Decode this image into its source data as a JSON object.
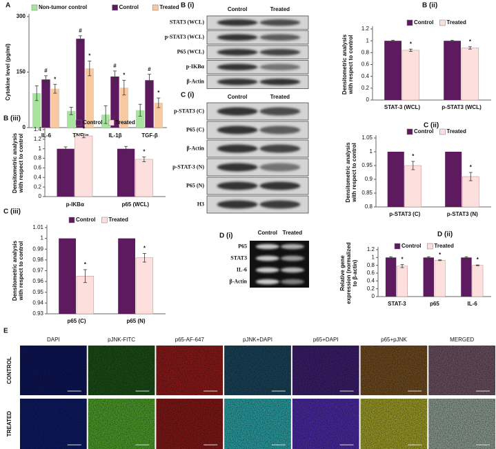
{
  "chart_data": [
    {
      "type": "bar",
      "panel": "A",
      "ylabel": [
        "Cytokine level (pg/ml)"
      ],
      "categories": [
        "IL-6",
        "TNF-α",
        "IL-1β",
        "TGF-β"
      ],
      "series": [
        {
          "name": "Non-tumor control",
          "color": "#a8e3a0",
          "values": [
            93,
            45,
            35,
            47
          ],
          "errors": [
            20,
            10,
            24,
            16
          ]
        },
        {
          "name": "Control",
          "color": "#5e1a5e",
          "values": [
            130,
            240,
            138,
            128
          ],
          "errors": [
            10,
            8,
            15,
            16
          ],
          "markers": [
            "#",
            "#",
            "#",
            "#"
          ]
        },
        {
          "name": "Treated",
          "color": "#f8c9a0",
          "values": [
            105,
            160,
            108,
            67
          ],
          "errors": [
            12,
            20,
            20,
            13
          ],
          "markers": [
            "*",
            "*",
            "*",
            "*"
          ]
        }
      ],
      "ylim": [
        0,
        300
      ],
      "yticks": [
        0,
        150,
        300
      ],
      "legend": "top"
    },
    {
      "type": "bar",
      "panel": "B (ii)",
      "ylabel": [
        "Densitometric analysis",
        "with respect to control"
      ],
      "categories": [
        "STAT-3 (WCL)",
        "p-STAT3  (WCL)"
      ],
      "series": [
        {
          "name": "Control",
          "color": "#5e1a5e",
          "values": [
            1,
            1
          ],
          "errors": [
            0.01,
            0.01
          ]
        },
        {
          "name": "Treated",
          "color": "#fde0de",
          "values": [
            0.84,
            0.88
          ],
          "errors": [
            0.02,
            0.02
          ],
          "markers": [
            "*",
            "*"
          ]
        }
      ],
      "ylim": [
        0,
        1.2
      ],
      "yticks": [
        0,
        0.2,
        0.4,
        0.6,
        0.8,
        1,
        1.2
      ],
      "legend": "top"
    },
    {
      "type": "bar",
      "panel": "B (iii)",
      "ylabel": [
        "Densitometric analysis",
        "with respect to control"
      ],
      "categories": [
        "p-IKBα",
        "p65 (WCL)"
      ],
      "series": [
        {
          "name": "Control",
          "color": "#5e1a5e",
          "values": [
            1,
            1
          ],
          "errors": [
            0.04,
            0.05
          ]
        },
        {
          "name": "Treated",
          "color": "#fde0de",
          "values": [
            1.27,
            0.78
          ],
          "errors": [
            0.04,
            0.05
          ],
          "markers": [
            "*",
            "*"
          ]
        }
      ],
      "ylim": [
        0,
        1.4
      ],
      "yticks": [
        0,
        0.2,
        0.4,
        0.6,
        0.8,
        1,
        1.2,
        1.4
      ],
      "legend": "top"
    },
    {
      "type": "bar",
      "panel": "C (ii)",
      "ylabel": [
        "Densitometric analysis",
        "with respect to control"
      ],
      "categories": [
        "p-STAT3 (C)",
        "p-STAT3 (N)"
      ],
      "series": [
        {
          "name": "Control",
          "color": "#5e1a5e",
          "values": [
            1,
            1
          ]
        },
        {
          "name": "Treated",
          "color": "#fde0de",
          "values": [
            0.95,
            0.91
          ],
          "errors": [
            0.015,
            0.015
          ],
          "markers": [
            "*",
            "*"
          ]
        }
      ],
      "ylim": [
        0.8,
        1.05
      ],
      "yticks": [
        0.8,
        0.85,
        0.9,
        0.95,
        1,
        1.05
      ],
      "legend": "top"
    },
    {
      "type": "bar",
      "panel": "C (iii)",
      "ylabel": [
        "Densitometric analysis",
        "with respect to control"
      ],
      "categories": [
        "p65 (C)",
        "p65 (N)"
      ],
      "series": [
        {
          "name": "Control",
          "color": "#5e1a5e",
          "values": [
            1,
            1
          ]
        },
        {
          "name": "Treated",
          "color": "#fde0de",
          "values": [
            0.965,
            0.982
          ],
          "errors": [
            0.006,
            0.004
          ],
          "markers": [
            "*",
            "*"
          ]
        }
      ],
      "ylim": [
        0.93,
        1.01
      ],
      "yticks": [
        0.93,
        0.94,
        0.95,
        0.96,
        0.97,
        0.98,
        0.99,
        1,
        1.01
      ],
      "legend": "top"
    },
    {
      "type": "bar",
      "panel": "D (ii)",
      "ylabel": [
        "Relative gene",
        "expression (normalized",
        "to β-actin)"
      ],
      "categories": [
        "STAT-3",
        "p65",
        "IL-6"
      ],
      "series": [
        {
          "name": "Control",
          "color": "#5e1a5e",
          "values": [
            1,
            1,
            1
          ],
          "errors": [
            0.02,
            0.02,
            0.02
          ]
        },
        {
          "name": "Treated",
          "color": "#fde0de",
          "values": [
            0.78,
            0.93,
            0.8
          ],
          "errors": [
            0.04,
            0.01,
            0.01
          ],
          "markers": [
            "*",
            "*",
            "*"
          ]
        }
      ],
      "ylim": [
        0,
        1.2
      ],
      "yticks": [
        0,
        0.2,
        0.4,
        0.6,
        0.8,
        1,
        1.2
      ],
      "legend": "top"
    }
  ],
  "blots": [
    {
      "panel": "B (i)",
      "columns": [
        "Control",
        "Treated"
      ],
      "rows": [
        "STAT3 (WCL)",
        "p-STAT3 (WCL)",
        "P65 (WCL)",
        "p-IKBα",
        "β-Actin"
      ]
    },
    {
      "panel": "C (i)",
      "columns": [
        "Control",
        "Treated"
      ],
      "rows": [
        "p-STAT3 (C)",
        "P65 (C)",
        "β-Actin",
        "p-STAT-3 (N)",
        "P65 (N)",
        "H3"
      ]
    },
    {
      "panel": "D (i)",
      "columns": [
        "Control",
        "Treated"
      ],
      "rows": [
        "P65",
        "STAT3",
        "IL-6",
        "β-Actin"
      ]
    }
  ],
  "imaging": {
    "panel": "E",
    "channels": [
      "DAPI",
      "pJNK-FITC",
      "p65-AF-647",
      "pJNK+DAPI",
      "p65+DAPI",
      "p65+pJNK",
      "MERGED"
    ],
    "conditions": [
      "CONTROL",
      "TREATED"
    ]
  }
}
